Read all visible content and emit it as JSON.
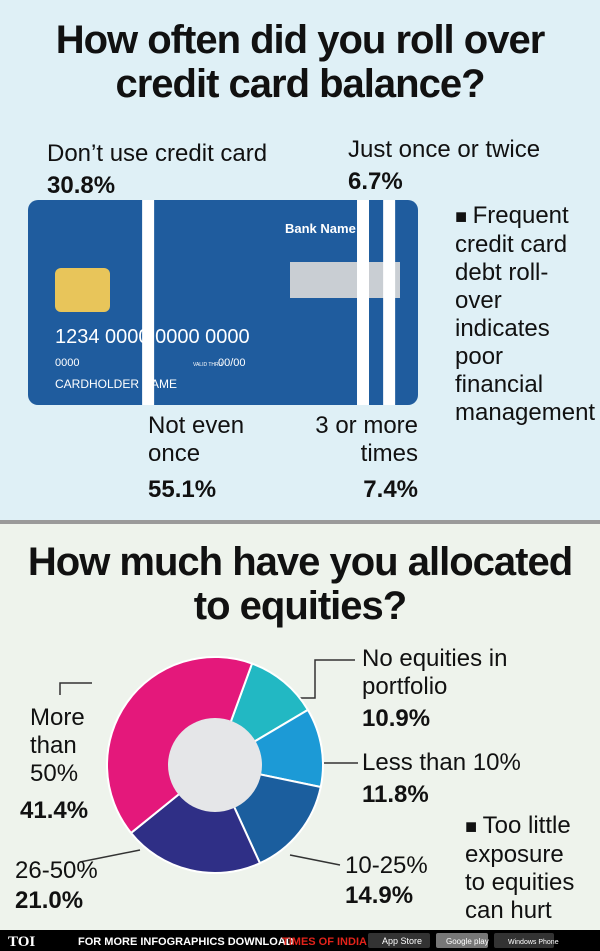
{
  "chart_data": [
    {
      "type": "split",
      "title": "How often did you roll over credit card balance?",
      "categories": [
        "Don’t use credit card",
        "Not even once",
        "Just once or twice",
        "3 or more times"
      ],
      "values": [
        30.8,
        55.1,
        6.7,
        7.4
      ],
      "value_labels": [
        "30.8%",
        "55.1%",
        "6.7%",
        "7.4%"
      ],
      "color": "#1f5c9e",
      "card_text": {
        "bank": "Bank Name",
        "number": "1234 0000 0000 0000",
        "code": "0000",
        "valid": "VALID THRU",
        "date": "00/00",
        "holder": "CARDHOLDER NAME"
      },
      "note": "Frequent credit card debt roll-over indicates poor financial management"
    },
    {
      "type": "donut",
      "title": "How much have you allocated to equities?",
      "categories": [
        "No equities in portfolio",
        "Less than 10%",
        "10-25%",
        "26-50%",
        "More than 50%"
      ],
      "values": [
        10.9,
        11.8,
        14.9,
        21.0,
        41.4
      ],
      "value_labels": [
        "10.9%",
        "11.8%",
        "14.9%",
        "21.0%",
        "41.4%"
      ],
      "colors": [
        "#22b8c3",
        "#1c9ad6",
        "#1b5e9e",
        "#2f2f86",
        "#e4187b"
      ],
      "note": "Too little exposure to equities can hurt"
    }
  ],
  "footer": {
    "brand": "TOI",
    "text": "FOR MORE INFOGRAPHICS DOWNLOAD",
    "app": "TIMES OF INDIA APP",
    "badges": [
      "App Store",
      "Google play",
      "Windows Phone"
    ]
  }
}
